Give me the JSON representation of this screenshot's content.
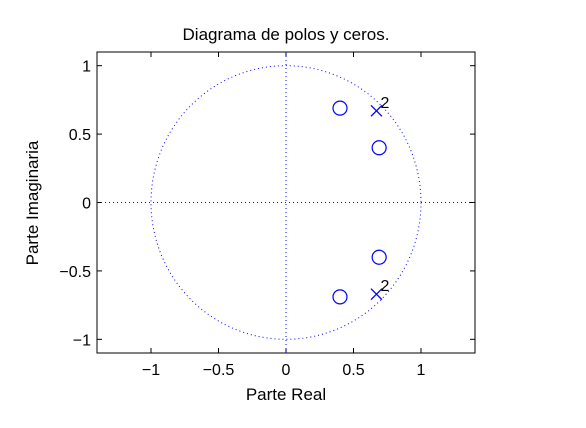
{
  "chart_data": {
    "type": "scatter",
    "title": "Diagrama de polos y ceros.",
    "xlabel": "Parte Real",
    "ylabel": "Parte Imaginaria",
    "xlim": [
      -1.4,
      1.4
    ],
    "ylim": [
      -1.1,
      1.1
    ],
    "xticks": [
      -1,
      -0.5,
      0,
      0.5,
      1
    ],
    "xtick_labels": [
      "−1",
      "−0.5",
      "0",
      "0.5",
      "1"
    ],
    "yticks": [
      1,
      0.5,
      0,
      -0.5,
      -1
    ],
    "ytick_labels": [
      "1",
      "0.5",
      "0",
      "−0.5",
      "−1"
    ],
    "unit_circle": true,
    "grid": false,
    "marker_color": "#0000ff",
    "series": [
      {
        "marker": "o",
        "points": [
          {
            "x": 0.4,
            "y": 0.69
          },
          {
            "x": 0.69,
            "y": 0.4
          },
          {
            "x": 0.69,
            "y": -0.4
          },
          {
            "x": 0.4,
            "y": -0.69
          }
        ]
      },
      {
        "marker": "x",
        "points": [
          {
            "x": 0.67,
            "y": 0.67,
            "label": "2"
          },
          {
            "x": 0.67,
            "y": -0.67,
            "label": "2"
          }
        ]
      }
    ]
  }
}
